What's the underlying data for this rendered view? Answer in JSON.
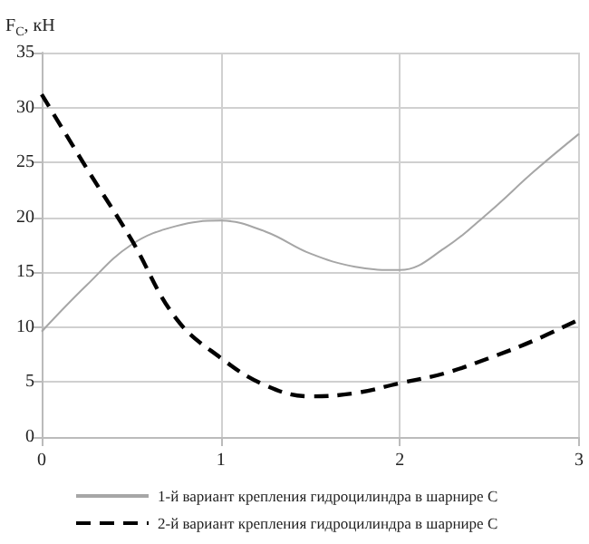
{
  "chart_data": {
    "type": "line",
    "ylabel": "F$_{C}$, кН",
    "x": [
      0,
      0.25,
      0.5,
      0.75,
      1,
      1.25,
      1.5,
      1.75,
      2,
      2.25,
      2.5,
      2.75,
      3
    ],
    "series": [
      {
        "name": "1-й вариант крепления гидроцилиндра в шарнире С",
        "color": "#a6a6a6",
        "line_style": "solid",
        "values": [
          9.6,
          13.8,
          17.5,
          19.2,
          19.7,
          18.7,
          16.7,
          15.5,
          15.2,
          17.2,
          20.5,
          24.2,
          27.6
        ]
      },
      {
        "name": "2-й вариант крепления гидроцилиндра в шарнире С",
        "color": "#000000",
        "line_style": "dashed",
        "values": [
          31.2,
          24.5,
          18,
          10.8,
          7.2,
          4.7,
          3.7,
          4.0,
          4.9,
          5.8,
          7.2,
          8.8,
          10.7
        ]
      }
    ],
    "xlim": [
      0,
      3
    ],
    "xticks": [
      0,
      1,
      2,
      3
    ],
    "ylim": [
      0,
      35
    ],
    "yticks": [
      0,
      5,
      10,
      15,
      20,
      25,
      30,
      35
    ],
    "grid": true,
    "legend": "bottom",
    "marker": "none"
  }
}
